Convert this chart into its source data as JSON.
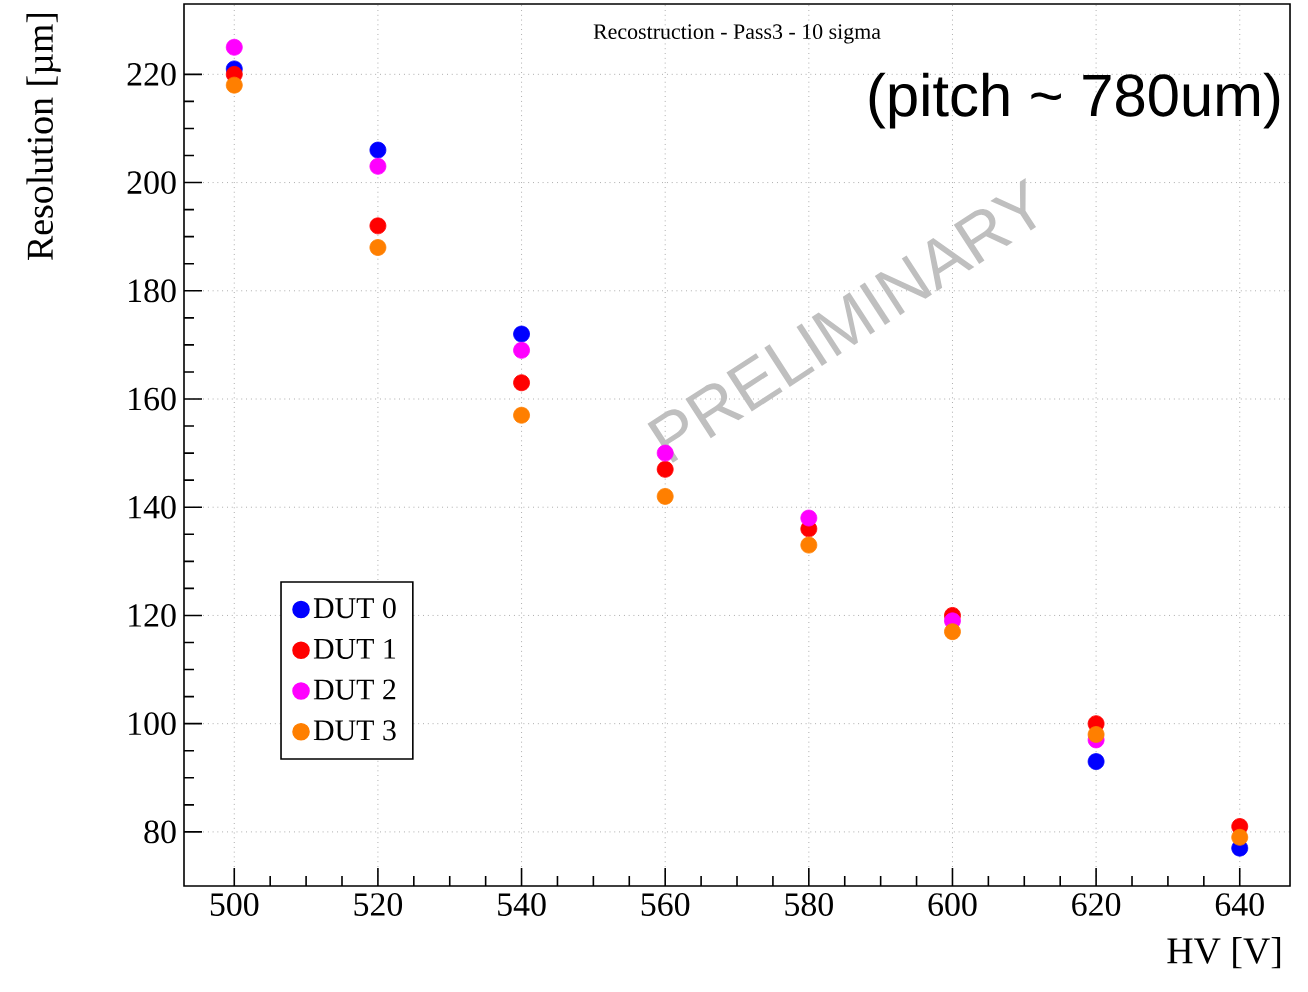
{
  "chart_data": {
    "type": "scatter",
    "subtitle": "Recostruction - Pass3 - 10 sigma",
    "xlabel": "HV [V]",
    "ylabel": "Resolution [µm]",
    "annotations": [
      "(pitch ~ 780um)",
      "PRELIMINARY"
    ],
    "x": [
      500,
      520,
      540,
      560,
      580,
      600,
      620,
      640
    ],
    "series": [
      {
        "name": "DUT 0",
        "color": "#0000ff",
        "values": [
          221,
          206,
          172,
          null,
          null,
          null,
          93,
          77
        ]
      },
      {
        "name": "DUT 1",
        "color": "#ff0000",
        "values": [
          220,
          192,
          163,
          147,
          136,
          120,
          100,
          81
        ]
      },
      {
        "name": "DUT 2",
        "color": "#ff00ff",
        "values": [
          225,
          203,
          169,
          150,
          138,
          119,
          97,
          null
        ]
      },
      {
        "name": "DUT 3",
        "color": "#ff7f00",
        "values": [
          218,
          188,
          157,
          142,
          133,
          117,
          98,
          79
        ]
      }
    ],
    "xlim": [
      493,
      647
    ],
    "ylim": [
      70,
      233
    ],
    "xticks": [
      500,
      520,
      540,
      560,
      580,
      600,
      620,
      640
    ],
    "yticks": [
      80,
      100,
      120,
      140,
      160,
      180,
      200,
      220
    ],
    "grid": true,
    "legend": "left",
    "marker": "circle"
  }
}
